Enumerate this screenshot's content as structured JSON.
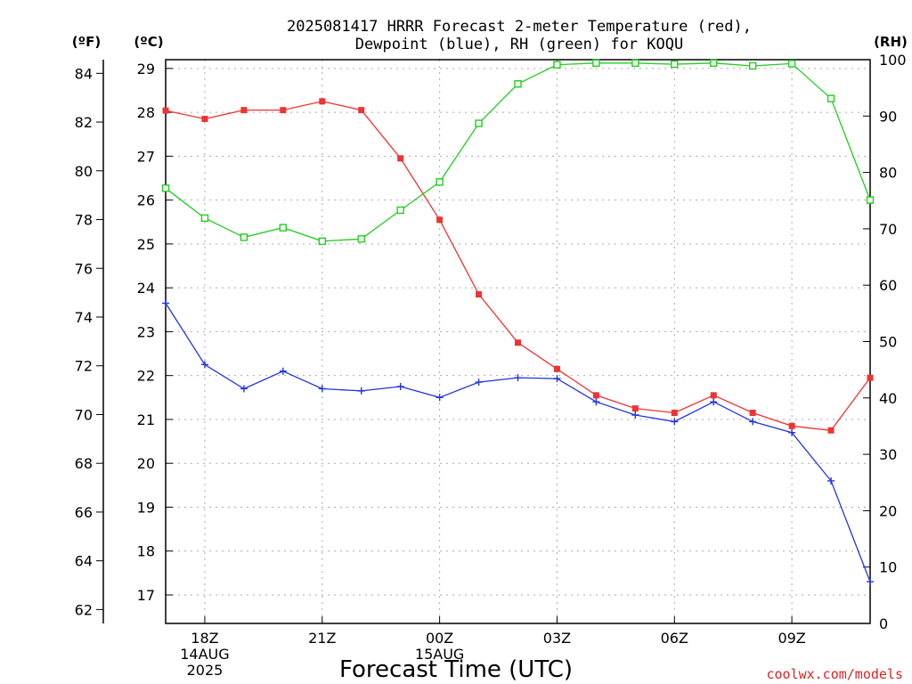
{
  "chart_data": {
    "type": "line",
    "title": "2025081417 HRRR Forecast 2-meter Temperature (red),",
    "subtitle": "Dewpoint (blue), RH (green) for KOQU",
    "xlabel": "Forecast Time (UTC)",
    "credit": "coolwx.com/models",
    "axis_unit_labels": {
      "fahrenheit": "(ºF)",
      "celsius": "(ºC)",
      "rh": "(RH)"
    },
    "x_hours": [
      17,
      18,
      19,
      20,
      21,
      22,
      23,
      24,
      25,
      26,
      27,
      28,
      29,
      30,
      31,
      32,
      33,
      34,
      35
    ],
    "x_ticks": [
      {
        "hour": 18,
        "lines": [
          "18Z",
          "14AUG",
          "2025"
        ]
      },
      {
        "hour": 21,
        "lines": [
          "21Z"
        ]
      },
      {
        "hour": 24,
        "lines": [
          "00Z",
          "15AUG"
        ]
      },
      {
        "hour": 27,
        "lines": [
          "03Z"
        ]
      },
      {
        "hour": 30,
        "lines": [
          "06Z"
        ]
      },
      {
        "hour": 33,
        "lines": [
          "09Z"
        ]
      }
    ],
    "xlim": [
      17,
      35
    ],
    "ylim_celsius": [
      16.35,
      29.2
    ],
    "ylim_rh": [
      0,
      100
    ],
    "celsius_ticks": [
      17,
      18,
      19,
      20,
      21,
      22,
      23,
      24,
      25,
      26,
      27,
      28,
      29
    ],
    "fahrenheit_ticks": [
      62,
      64,
      66,
      68,
      70,
      72,
      74,
      76,
      78,
      80,
      82,
      84
    ],
    "rh_ticks": [
      0,
      10,
      20,
      30,
      40,
      50,
      60,
      70,
      80,
      90,
      100
    ],
    "grid": true,
    "series": [
      {
        "name": "Temperature",
        "color": "#ee3333",
        "marker": "filled-square",
        "values": [
          28.04,
          27.85,
          28.05,
          28.05,
          28.25,
          28.05,
          26.95,
          25.55,
          23.85,
          22.75,
          22.15,
          21.55,
          21.25,
          21.15,
          21.55,
          21.15,
          20.85,
          20.75,
          21.95
        ]
      },
      {
        "name": "Dewpoint",
        "color": "#2233dd",
        "marker": "plus",
        "values": [
          23.65,
          22.25,
          21.7,
          22.1,
          21.7,
          21.65,
          21.75,
          21.5,
          21.85,
          21.95,
          21.93,
          21.4,
          21.1,
          20.95,
          21.4,
          20.95,
          20.7,
          19.6,
          17.3
        ]
      },
      {
        "name": "RH",
        "color": "#22cc22",
        "marker": "open-square",
        "values": [
          77.2,
          71.9,
          68.5,
          70.2,
          67.8,
          68.2,
          73.3,
          78.3,
          88.7,
          95.7,
          99.1,
          99.4,
          99.4,
          99.2,
          99.4,
          98.9,
          99.3,
          93.1,
          75.1
        ]
      }
    ]
  }
}
